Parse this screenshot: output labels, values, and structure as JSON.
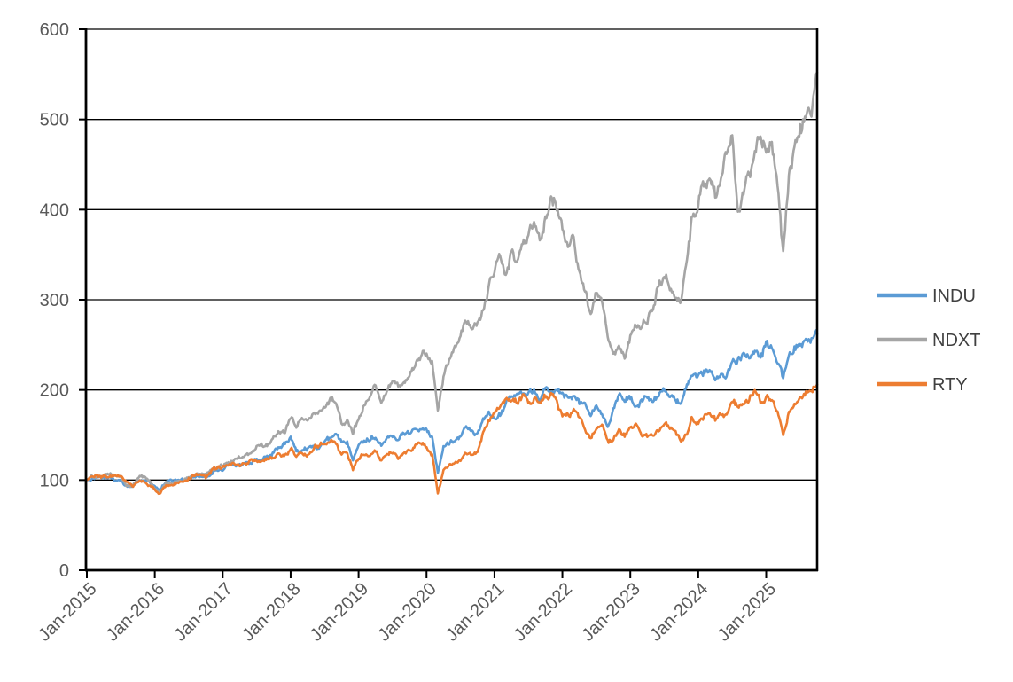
{
  "chart_data": {
    "type": "line",
    "title": "",
    "xlabel": "",
    "ylabel": "",
    "ylim": [
      0,
      600
    ],
    "y_ticks": [
      0,
      100,
      200,
      300,
      400,
      500,
      600
    ],
    "x_tick_labels": [
      "Jan-2015",
      "Jan-2016",
      "Jan-2017",
      "Jan-2018",
      "Jan-2019",
      "Jan-2020",
      "Jan-2021",
      "Jan-2022",
      "Jan-2023",
      "Jan-2024",
      "Jan-2025"
    ],
    "x_unit": "month",
    "x_range_note": "monthly values Jan-2015 through Oct-2025, indexed to 100 at Jan-2015",
    "grid": true,
    "legend_position": "right",
    "series": [
      {
        "name": "INDU",
        "color": "#5B9BD5",
        "values": [
          100,
          102,
          102,
          102,
          103,
          99,
          100,
          93,
          92,
          99,
          100,
          98,
          92,
          90,
          99,
          100,
          100,
          101,
          103,
          104,
          103,
          102,
          107,
          111,
          111,
          117,
          116,
          117,
          118,
          120,
          123,
          123,
          126,
          131,
          136,
          139,
          147,
          134,
          134,
          136,
          137,
          136,
          142,
          146,
          149,
          141,
          143,
          125,
          140,
          145,
          145,
          149,
          139,
          149,
          151,
          146,
          151,
          152,
          157,
          160,
          158,
          147,
          110,
          137,
          142,
          145,
          148,
          159,
          156,
          149,
          166,
          172,
          168,
          173,
          185,
          190,
          194,
          193,
          196,
          198,
          190,
          201,
          193,
          203,
          199,
          190,
          194,
          185,
          183,
          173,
          184,
          177,
          162,
          181,
          194,
          186,
          191,
          183,
          187,
          191,
          185,
          193,
          199,
          195,
          188,
          183,
          202,
          211,
          214,
          219,
          223,
          212,
          217,
          219,
          229,
          233,
          237,
          236,
          250,
          239,
          250,
          246,
          236,
          214,
          237,
          247,
          249,
          255,
          258,
          262
        ]
      },
      {
        "name": "NDXT",
        "color": "#A5A5A5",
        "values": [
          100,
          104,
          103,
          105,
          106,
          104,
          105,
          92,
          94,
          102,
          103,
          99,
          90,
          86,
          96,
          95,
          98,
          97,
          103,
          106,
          108,
          108,
          110,
          113,
          116,
          120,
          122,
          125,
          129,
          131,
          136,
          138,
          140,
          147,
          152,
          153,
          170,
          160,
          168,
          165,
          172,
          176,
          180,
          188,
          186,
          163,
          165,
          154,
          170,
          184,
          194,
          204,
          186,
          200,
          210,
          202,
          206,
          216,
          226,
          236,
          240,
          230,
          178,
          215,
          236,
          251,
          263,
          280,
          262,
          272,
          292,
          317,
          330,
          348,
          320,
          348,
          345,
          358,
          372,
          382,
          365,
          395,
          415,
          402,
          378,
          358,
          368,
          330,
          310,
          282,
          310,
          302,
          258,
          236,
          252,
          238,
          258,
          268,
          272,
          277,
          292,
          316,
          330,
          316,
          301,
          298,
          342,
          395,
          408,
          428,
          436,
          412,
          435,
          462,
          475,
          398,
          428,
          442,
          468,
          478,
          470,
          483,
          432,
          350,
          432,
          465,
          488,
          502,
          505,
          552
        ]
      },
      {
        "name": "RTY",
        "color": "#ED7D31",
        "values": [
          100,
          102,
          104,
          103,
          104,
          105,
          103,
          97,
          93,
          97,
          99,
          95,
          88,
          84,
          95,
          97,
          96,
          98,
          103,
          105,
          106,
          103,
          110,
          114,
          114,
          116,
          117,
          118,
          117,
          120,
          119,
          118,
          124,
          126,
          129,
          129,
          134,
          127,
          129,
          130,
          136,
          140,
          141,
          144,
          142,
          128,
          130,
          112,
          124,
          130,
          128,
          132,
          122,
          130,
          133,
          124,
          128,
          131,
          136,
          140,
          137,
          130,
          85,
          110,
          115,
          120,
          124,
          131,
          127,
          130,
          151,
          166,
          174,
          185,
          192,
          190,
          187,
          194,
          186,
          189,
          186,
          192,
          196,
          189,
          171,
          174,
          176,
          168,
          158,
          146,
          158,
          162,
          141,
          146,
          157,
          148,
          156,
          162,
          149,
          148,
          148,
          157,
          165,
          159,
          153,
          141,
          151,
          169,
          164,
          171,
          177,
          169,
          172,
          172,
          187,
          180,
          185,
          187,
          200,
          188,
          192,
          188,
          176,
          150,
          175,
          182,
          188,
          197,
          201,
          206
        ]
      }
    ]
  },
  "styles": {
    "background": "#FFFFFF",
    "axis_color": "#000000",
    "gridline_color": "#000000",
    "tick_label_color": "#595959",
    "legend_text_color": "#404040"
  }
}
